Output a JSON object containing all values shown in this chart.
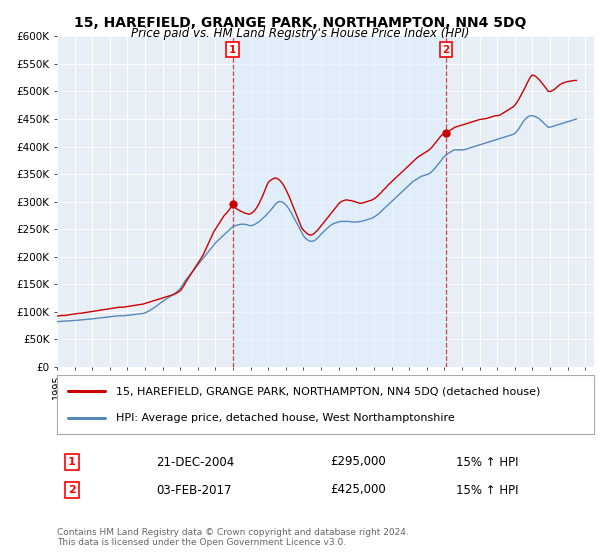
{
  "title": "15, HAREFIELD, GRANGE PARK, NORTHAMPTON, NN4 5DQ",
  "subtitle": "Price paid vs. HM Land Registry's House Price Index (HPI)",
  "legend_label_red": "15, HAREFIELD, GRANGE PARK, NORTHAMPTON, NN4 5DQ (detached house)",
  "legend_label_blue": "HPI: Average price, detached house, West Northamptonshire",
  "footer": "Contains HM Land Registry data © Crown copyright and database right 2024.\nThis data is licensed under the Open Government Licence v3.0.",
  "annotation1_label": "1",
  "annotation1_date": "21-DEC-2004",
  "annotation1_price": "£295,000",
  "annotation1_hpi": "15% ↑ HPI",
  "annotation2_label": "2",
  "annotation2_date": "03-FEB-2017",
  "annotation2_price": "£425,000",
  "annotation2_hpi": "15% ↑ HPI",
  "xmin": 1995.0,
  "xmax": 2025.5,
  "ymin": 0,
  "ymax": 600000,
  "yticks": [
    0,
    50000,
    100000,
    150000,
    200000,
    250000,
    300000,
    350000,
    400000,
    450000,
    500000,
    550000,
    600000
  ],
  "color_red": "#cc0000",
  "color_blue": "#5588bb",
  "color_vline": "#cc4444",
  "shade_color": "#ddeeff",
  "background_chart": "#e8eef5",
  "marker1_x": 2004.97,
  "marker1_y": 295000,
  "marker2_x": 2017.09,
  "marker2_y": 425000,
  "red_x": [
    1995.0,
    1995.1,
    1995.2,
    1995.3,
    1995.4,
    1995.5,
    1995.6,
    1995.7,
    1995.8,
    1995.9,
    1996.0,
    1996.1,
    1996.2,
    1996.3,
    1996.4,
    1996.5,
    1996.6,
    1996.7,
    1996.8,
    1996.9,
    1997.0,
    1997.1,
    1997.2,
    1997.3,
    1997.4,
    1997.5,
    1997.6,
    1997.7,
    1997.8,
    1997.9,
    1998.0,
    1998.1,
    1998.2,
    1998.3,
    1998.4,
    1998.5,
    1998.6,
    1998.7,
    1998.8,
    1998.9,
    1999.0,
    1999.1,
    1999.2,
    1999.3,
    1999.4,
    1999.5,
    1999.6,
    1999.7,
    1999.8,
    1999.9,
    2000.0,
    2000.1,
    2000.2,
    2000.3,
    2000.4,
    2000.5,
    2000.6,
    2000.7,
    2000.8,
    2000.9,
    2001.0,
    2001.1,
    2001.2,
    2001.3,
    2001.4,
    2001.5,
    2001.6,
    2001.7,
    2001.8,
    2001.9,
    2002.0,
    2002.1,
    2002.2,
    2002.3,
    2002.4,
    2002.5,
    2002.6,
    2002.7,
    2002.8,
    2002.9,
    2003.0,
    2003.1,
    2003.2,
    2003.3,
    2003.4,
    2003.5,
    2003.6,
    2003.7,
    2003.8,
    2003.9,
    2004.0,
    2004.1,
    2004.2,
    2004.3,
    2004.4,
    2004.5,
    2004.6,
    2004.7,
    2004.8,
    2004.97,
    2005.0,
    2005.1,
    2005.2,
    2005.3,
    2005.4,
    2005.5,
    2005.6,
    2005.7,
    2005.8,
    2005.9,
    2006.0,
    2006.1,
    2006.2,
    2006.3,
    2006.4,
    2006.5,
    2006.6,
    2006.7,
    2006.8,
    2006.9,
    2007.0,
    2007.1,
    2007.2,
    2007.3,
    2007.4,
    2007.5,
    2007.6,
    2007.7,
    2007.8,
    2007.9,
    2008.0,
    2008.1,
    2008.2,
    2008.3,
    2008.4,
    2008.5,
    2008.6,
    2008.7,
    2008.8,
    2008.9,
    2009.0,
    2009.1,
    2009.2,
    2009.3,
    2009.4,
    2009.5,
    2009.6,
    2009.7,
    2009.8,
    2009.9,
    2010.0,
    2010.1,
    2010.2,
    2010.3,
    2010.4,
    2010.5,
    2010.6,
    2010.7,
    2010.8,
    2010.9,
    2011.0,
    2011.1,
    2011.2,
    2011.3,
    2011.4,
    2011.5,
    2011.6,
    2011.7,
    2011.8,
    2011.9,
    2012.0,
    2012.1,
    2012.2,
    2012.3,
    2012.4,
    2012.5,
    2012.6,
    2012.7,
    2012.8,
    2012.9,
    2013.0,
    2013.1,
    2013.2,
    2013.3,
    2013.4,
    2013.5,
    2013.6,
    2013.7,
    2013.8,
    2013.9,
    2014.0,
    2014.1,
    2014.2,
    2014.3,
    2014.4,
    2014.5,
    2014.6,
    2014.7,
    2014.8,
    2014.9,
    2015.0,
    2015.1,
    2015.2,
    2015.3,
    2015.4,
    2015.5,
    2015.6,
    2015.7,
    2015.8,
    2015.9,
    2016.0,
    2016.1,
    2016.2,
    2016.3,
    2016.4,
    2016.5,
    2016.6,
    2016.7,
    2016.8,
    2016.9,
    2017.0,
    2017.09,
    2017.2,
    2017.3,
    2017.4,
    2017.5,
    2017.6,
    2017.7,
    2017.8,
    2017.9,
    2018.0,
    2018.1,
    2018.2,
    2018.3,
    2018.4,
    2018.5,
    2018.6,
    2018.7,
    2018.8,
    2018.9,
    2019.0,
    2019.1,
    2019.2,
    2019.3,
    2019.4,
    2019.5,
    2019.6,
    2019.7,
    2019.8,
    2019.9,
    2020.0,
    2020.1,
    2020.2,
    2020.3,
    2020.4,
    2020.5,
    2020.6,
    2020.7,
    2020.8,
    2020.9,
    2021.0,
    2021.1,
    2021.2,
    2021.3,
    2021.4,
    2021.5,
    2021.6,
    2021.7,
    2021.8,
    2021.9,
    2022.0,
    2022.1,
    2022.2,
    2022.3,
    2022.4,
    2022.5,
    2022.6,
    2022.7,
    2022.8,
    2022.9,
    2023.0,
    2023.1,
    2023.2,
    2023.3,
    2023.4,
    2023.5,
    2023.6,
    2023.7,
    2023.8,
    2023.9,
    2024.0,
    2024.1,
    2024.2,
    2024.3,
    2024.4,
    2024.5
  ],
  "red_y": [
    92000,
    92500,
    93000,
    93500,
    93000,
    93500,
    94000,
    94500,
    95000,
    95500,
    96000,
    96500,
    97000,
    97000,
    97500,
    98000,
    98500,
    99000,
    99500,
    100000,
    100500,
    101000,
    101500,
    102000,
    102500,
    103000,
    103500,
    104000,
    104500,
    105000,
    105500,
    106000,
    106500,
    107000,
    107500,
    108000,
    108500,
    108000,
    108500,
    109000,
    109500,
    110000,
    110500,
    111000,
    111500,
    112000,
    112500,
    113000,
    113500,
    114000,
    115000,
    116000,
    117000,
    118000,
    119000,
    120000,
    121000,
    122000,
    123000,
    124000,
    125000,
    126000,
    127000,
    128000,
    129000,
    130000,
    131000,
    132500,
    134000,
    136000,
    138000,
    142000,
    147000,
    153000,
    158000,
    163000,
    168000,
    173000,
    178000,
    183000,
    188000,
    193000,
    198000,
    203000,
    210000,
    217000,
    224000,
    231000,
    238000,
    245000,
    250000,
    255000,
    260000,
    265000,
    270000,
    275000,
    278000,
    282000,
    286000,
    295000,
    292000,
    290000,
    287000,
    285000,
    283000,
    282000,
    280000,
    279000,
    278000,
    277000,
    278000,
    280000,
    283000,
    287000,
    292000,
    298000,
    305000,
    312000,
    320000,
    328000,
    335000,
    338000,
    340000,
    342000,
    343000,
    342000,
    340000,
    337000,
    333000,
    328000,
    322000,
    315000,
    308000,
    300000,
    292000,
    284000,
    276000,
    268000,
    260000,
    252000,
    248000,
    245000,
    242000,
    240000,
    239000,
    240000,
    242000,
    245000,
    248000,
    252000,
    256000,
    260000,
    264000,
    268000,
    272000,
    276000,
    280000,
    284000,
    288000,
    292000,
    296000,
    299000,
    301000,
    302000,
    303000,
    303000,
    302000,
    302000,
    301000,
    300000,
    299000,
    298000,
    297000,
    297000,
    298000,
    299000,
    300000,
    301000,
    302000,
    303000,
    305000,
    307000,
    310000,
    313000,
    316000,
    320000,
    323000,
    326000,
    330000,
    333000,
    336000,
    339000,
    342000,
    345000,
    348000,
    351000,
    354000,
    357000,
    360000,
    363000,
    366000,
    369000,
    372000,
    375000,
    378000,
    381000,
    383000,
    385000,
    387000,
    389000,
    391000,
    393000,
    396000,
    399000,
    403000,
    407000,
    411000,
    415000,
    419000,
    422000,
    424000,
    425000,
    427000,
    429000,
    431000,
    433000,
    435000,
    436000,
    437000,
    438000,
    439000,
    440000,
    441000,
    442000,
    443000,
    444000,
    445000,
    446000,
    447000,
    448000,
    449000,
    449500,
    450000,
    450500,
    451000,
    452000,
    453000,
    454000,
    455000,
    456000,
    456000,
    456500,
    458000,
    460000,
    462000,
    464000,
    466000,
    468000,
    470000,
    472000,
    475000,
    479000,
    484000,
    490000,
    496000,
    502000,
    508000,
    515000,
    521000,
    527000,
    530000,
    529000,
    527000,
    524000,
    521000,
    517000,
    513000,
    509000,
    505000,
    500000,
    500000,
    501000,
    503000,
    505000,
    508000,
    511000,
    513000,
    515000,
    516000,
    517000,
    518000,
    518500,
    519000,
    519500,
    520000,
    520000
  ],
  "blue_x": [
    1995.0,
    1995.1,
    1995.2,
    1995.3,
    1995.4,
    1995.5,
    1995.6,
    1995.7,
    1995.8,
    1995.9,
    1996.0,
    1996.1,
    1996.2,
    1996.3,
    1996.4,
    1996.5,
    1996.6,
    1996.7,
    1996.8,
    1996.9,
    1997.0,
    1997.1,
    1997.2,
    1997.3,
    1997.4,
    1997.5,
    1997.6,
    1997.7,
    1997.8,
    1997.9,
    1998.0,
    1998.1,
    1998.2,
    1998.3,
    1998.4,
    1998.5,
    1998.6,
    1998.7,
    1998.8,
    1998.9,
    1999.0,
    1999.1,
    1999.2,
    1999.3,
    1999.4,
    1999.5,
    1999.6,
    1999.7,
    1999.8,
    1999.9,
    2000.0,
    2000.1,
    2000.2,
    2000.3,
    2000.4,
    2000.5,
    2000.6,
    2000.7,
    2000.8,
    2000.9,
    2001.0,
    2001.1,
    2001.2,
    2001.3,
    2001.4,
    2001.5,
    2001.6,
    2001.7,
    2001.8,
    2001.9,
    2002.0,
    2002.1,
    2002.2,
    2002.3,
    2002.4,
    2002.5,
    2002.6,
    2002.7,
    2002.8,
    2002.9,
    2003.0,
    2003.1,
    2003.2,
    2003.3,
    2003.4,
    2003.5,
    2003.6,
    2003.7,
    2003.8,
    2003.9,
    2004.0,
    2004.1,
    2004.2,
    2004.3,
    2004.4,
    2004.5,
    2004.6,
    2004.7,
    2004.8,
    2004.9,
    2005.0,
    2005.1,
    2005.2,
    2005.3,
    2005.4,
    2005.5,
    2005.6,
    2005.7,
    2005.8,
    2005.9,
    2006.0,
    2006.1,
    2006.2,
    2006.3,
    2006.4,
    2006.5,
    2006.6,
    2006.7,
    2006.8,
    2006.9,
    2007.0,
    2007.1,
    2007.2,
    2007.3,
    2007.4,
    2007.5,
    2007.6,
    2007.7,
    2007.8,
    2007.9,
    2008.0,
    2008.1,
    2008.2,
    2008.3,
    2008.4,
    2008.5,
    2008.6,
    2008.7,
    2008.8,
    2008.9,
    2009.0,
    2009.1,
    2009.2,
    2009.3,
    2009.4,
    2009.5,
    2009.6,
    2009.7,
    2009.8,
    2009.9,
    2010.0,
    2010.1,
    2010.2,
    2010.3,
    2010.4,
    2010.5,
    2010.6,
    2010.7,
    2010.8,
    2010.9,
    2011.0,
    2011.1,
    2011.2,
    2011.3,
    2011.4,
    2011.5,
    2011.6,
    2011.7,
    2011.8,
    2011.9,
    2012.0,
    2012.1,
    2012.2,
    2012.3,
    2012.4,
    2012.5,
    2012.6,
    2012.7,
    2012.8,
    2012.9,
    2013.0,
    2013.1,
    2013.2,
    2013.3,
    2013.4,
    2013.5,
    2013.6,
    2013.7,
    2013.8,
    2013.9,
    2014.0,
    2014.1,
    2014.2,
    2014.3,
    2014.4,
    2014.5,
    2014.6,
    2014.7,
    2014.8,
    2014.9,
    2015.0,
    2015.1,
    2015.2,
    2015.3,
    2015.4,
    2015.5,
    2015.6,
    2015.7,
    2015.8,
    2015.9,
    2016.0,
    2016.1,
    2016.2,
    2016.3,
    2016.4,
    2016.5,
    2016.6,
    2016.7,
    2016.8,
    2016.9,
    2017.0,
    2017.1,
    2017.2,
    2017.3,
    2017.4,
    2017.5,
    2017.6,
    2017.7,
    2017.8,
    2017.9,
    2018.0,
    2018.1,
    2018.2,
    2018.3,
    2018.4,
    2018.5,
    2018.6,
    2018.7,
    2018.8,
    2018.9,
    2019.0,
    2019.1,
    2019.2,
    2019.3,
    2019.4,
    2019.5,
    2019.6,
    2019.7,
    2019.8,
    2019.9,
    2020.0,
    2020.1,
    2020.2,
    2020.3,
    2020.4,
    2020.5,
    2020.6,
    2020.7,
    2020.8,
    2020.9,
    2021.0,
    2021.1,
    2021.2,
    2021.3,
    2021.4,
    2021.5,
    2021.6,
    2021.7,
    2021.8,
    2021.9,
    2022.0,
    2022.1,
    2022.2,
    2022.3,
    2022.4,
    2022.5,
    2022.6,
    2022.7,
    2022.8,
    2022.9,
    2023.0,
    2023.1,
    2023.2,
    2023.3,
    2023.4,
    2023.5,
    2023.6,
    2023.7,
    2023.8,
    2023.9,
    2024.0,
    2024.1,
    2024.2,
    2024.3,
    2024.4,
    2024.5
  ],
  "blue_y": [
    82000,
    82200,
    82400,
    82600,
    82800,
    83000,
    83200,
    83400,
    83600,
    83800,
    84000,
    84300,
    84600,
    84900,
    85200,
    85500,
    85800,
    86100,
    86400,
    86700,
    87000,
    87400,
    87800,
    88200,
    88600,
    89000,
    89400,
    89800,
    90200,
    90600,
    91000,
    91300,
    91600,
    91900,
    92200,
    92500,
    92800,
    92500,
    92800,
    93100,
    93400,
    93800,
    94200,
    94600,
    95000,
    95400,
    95800,
    96200,
    96600,
    97000,
    98000,
    99500,
    101000,
    103000,
    105000,
    107000,
    109000,
    111500,
    114000,
    116500,
    119000,
    121000,
    123000,
    125000,
    127000,
    129000,
    131000,
    133500,
    136000,
    139000,
    142000,
    147000,
    152000,
    157000,
    161000,
    165000,
    169000,
    173000,
    177000,
    181000,
    185000,
    189000,
    193000,
    197000,
    201000,
    205000,
    209000,
    213000,
    217000,
    221000,
    225000,
    228000,
    231000,
    234000,
    237000,
    240000,
    243000,
    246000,
    249000,
    252000,
    255000,
    256000,
    257000,
    258000,
    258500,
    259000,
    259000,
    258500,
    258000,
    257000,
    256000,
    257000,
    258000,
    260000,
    262000,
    264000,
    267000,
    270000,
    273000,
    276000,
    280000,
    283000,
    287000,
    291000,
    295000,
    298000,
    300000,
    300000,
    299000,
    297000,
    294000,
    290000,
    285000,
    280000,
    274000,
    268000,
    262000,
    256000,
    250000,
    244000,
    238000,
    234000,
    231000,
    229000,
    228000,
    228000,
    229000,
    231000,
    234000,
    237000,
    241000,
    244000,
    247000,
    250000,
    253000,
    256000,
    258000,
    260000,
    261000,
    262000,
    263000,
    264000,
    264000,
    264000,
    264000,
    264000,
    264000,
    263000,
    263000,
    263000,
    263000,
    263000,
    264000,
    264000,
    265000,
    266000,
    267000,
    268000,
    269000,
    270000,
    272000,
    274000,
    276000,
    279000,
    282000,
    285000,
    288000,
    291000,
    294000,
    297000,
    300000,
    303000,
    306000,
    309000,
    312000,
    315000,
    318000,
    321000,
    324000,
    327000,
    330000,
    333000,
    336000,
    338000,
    340000,
    342000,
    344000,
    346000,
    347000,
    348000,
    349000,
    350000,
    352000,
    355000,
    358000,
    362000,
    366000,
    370000,
    374000,
    378000,
    382000,
    385000,
    387000,
    389000,
    391000,
    393000,
    394000,
    394000,
    394000,
    394000,
    394000,
    394000,
    395000,
    396000,
    397000,
    398000,
    399000,
    400000,
    401000,
    402000,
    403000,
    404000,
    405000,
    406000,
    407000,
    408000,
    409000,
    410000,
    411000,
    412000,
    413000,
    414000,
    415000,
    416000,
    417000,
    418000,
    419000,
    420000,
    421000,
    422000,
    424000,
    427000,
    431000,
    436000,
    441000,
    446000,
    450000,
    453000,
    455000,
    456000,
    456000,
    455000,
    454000,
    452000,
    450000,
    447000,
    444000,
    441000,
    438000,
    435000,
    435000,
    436000,
    437000,
    438000,
    439000,
    440000,
    441000,
    442000,
    443000,
    444000,
    445000,
    446000,
    447000,
    448000,
    449000,
    450000
  ]
}
